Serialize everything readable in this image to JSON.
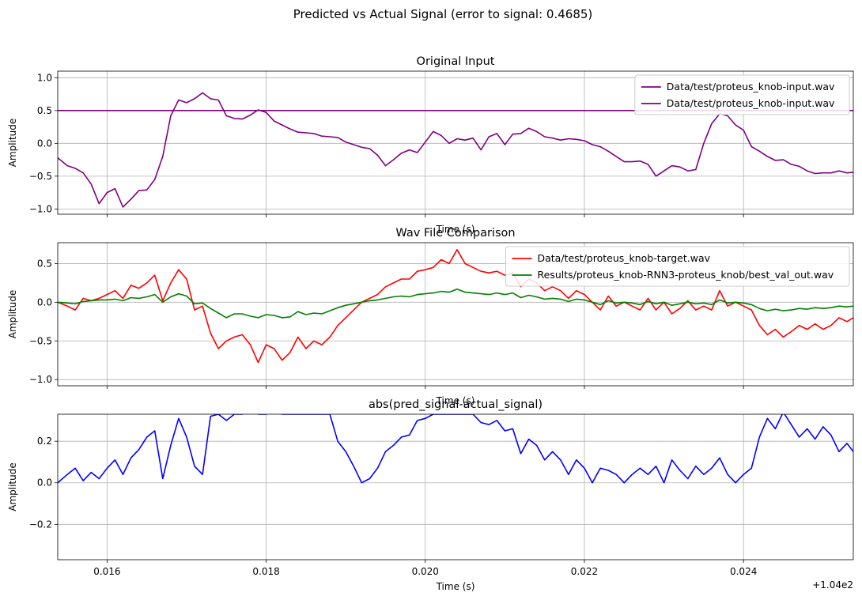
{
  "suptitle": "Predicted vs Actual Signal (error to signal: 0.4685)",
  "x_offset_label": "+1.04e2",
  "chart_data": [
    {
      "type": "line",
      "title": "Original Input",
      "xlabel": "Time (s)",
      "ylabel": "Amplitude",
      "xlim": [
        104.01538,
        104.02538
      ],
      "ylim": [
        -1.08,
        1.1
      ],
      "xticks": [
        104.016,
        104.018,
        104.02,
        104.022,
        104.024
      ],
      "xtick_labels": [
        "0.016",
        "0.018",
        "0.020",
        "0.022",
        "0.024"
      ],
      "show_xtick_labels": false,
      "yticks": [
        -1.0,
        -0.5,
        0.0,
        0.5,
        1.0
      ],
      "ytick_labels": [
        "−1.0",
        "−0.5",
        "0.0",
        "0.5",
        "1.0"
      ],
      "grid": true,
      "legend_loc": "upper right",
      "series": [
        {
          "name": "Data/test/proteus_knob-input.wav",
          "color": "#800080",
          "x": [
            104.01538,
            104.02538
          ],
          "y": [
            0.5,
            0.5
          ]
        },
        {
          "name": "Data/test/proteus_knob-input.wav",
          "color": "#800080",
          "x": [
            104.01538,
            104.0155,
            104.0156,
            104.0157,
            104.0158,
            104.0159,
            104.016,
            104.0161,
            104.0162,
            104.0163,
            104.0164,
            104.0165,
            104.0166,
            104.0167,
            104.0168,
            104.0169,
            104.017,
            104.0171,
            104.0172,
            104.0173,
            104.0174,
            104.0175,
            104.0176,
            104.0177,
            104.0178,
            104.0179,
            104.018,
            104.0181,
            104.0182,
            104.0183,
            104.0184,
            104.0185,
            104.0186,
            104.0187,
            104.0188,
            104.0189,
            104.019,
            104.0191,
            104.0192,
            104.0193,
            104.0194,
            104.0195,
            104.0196,
            104.0197,
            104.0198,
            104.0199,
            104.02,
            104.0201,
            104.0202,
            104.0203,
            104.0204,
            104.0205,
            104.0206,
            104.0207,
            104.0208,
            104.0209,
            104.021,
            104.0211,
            104.0212,
            104.0213,
            104.0214,
            104.0215,
            104.0216,
            104.0217,
            104.0218,
            104.0219,
            104.022,
            104.0221,
            104.0222,
            104.0223,
            104.0224,
            104.0225,
            104.0226,
            104.0227,
            104.0228,
            104.0229,
            104.023,
            104.0231,
            104.0232,
            104.0233,
            104.0234,
            104.0235,
            104.0236,
            104.0237,
            104.0238,
            104.0239,
            104.024,
            104.0241,
            104.0242,
            104.0243,
            104.0244,
            104.0245,
            104.0246,
            104.0247,
            104.0248,
            104.0249,
            104.025,
            104.0251,
            104.0252,
            104.0253,
            104.02538
          ],
          "y": [
            -0.22,
            -0.34,
            -0.38,
            -0.45,
            -0.62,
            -0.92,
            -0.75,
            -0.69,
            -0.97,
            -0.85,
            -0.72,
            -0.71,
            -0.55,
            -0.2,
            0.42,
            0.66,
            0.62,
            0.68,
            0.77,
            0.68,
            0.66,
            0.42,
            0.38,
            0.37,
            0.43,
            0.51,
            0.47,
            0.34,
            0.28,
            0.22,
            0.17,
            0.16,
            0.15,
            0.11,
            0.1,
            0.09,
            0.02,
            -0.02,
            -0.06,
            -0.08,
            -0.18,
            -0.34,
            -0.25,
            -0.15,
            -0.1,
            -0.14,
            0.02,
            0.18,
            0.12,
            0.0,
            0.07,
            0.05,
            0.08,
            -0.1,
            0.1,
            0.15,
            -0.02,
            0.14,
            0.15,
            0.23,
            0.18,
            0.1,
            0.08,
            0.05,
            0.07,
            0.06,
            0.04,
            -0.02,
            -0.05,
            -0.12,
            -0.2,
            -0.28,
            -0.28,
            -0.27,
            -0.32,
            -0.5,
            -0.42,
            -0.34,
            -0.36,
            -0.42,
            -0.4,
            0.0,
            0.3,
            0.45,
            0.42,
            0.28,
            0.2,
            -0.05,
            -0.12,
            -0.2,
            -0.26,
            -0.25,
            -0.32,
            -0.35,
            -0.42,
            -0.46,
            -0.45,
            -0.45,
            -0.42,
            -0.45,
            -0.44
          ]
        }
      ]
    },
    {
      "type": "line",
      "title": "Wav File Comparison",
      "xlabel": "Time (s)",
      "ylabel": "Amplitude",
      "xlim": [
        104.01538,
        104.02538
      ],
      "ylim": [
        -1.08,
        0.77
      ],
      "xticks": [
        104.016,
        104.018,
        104.02,
        104.022,
        104.024
      ],
      "xtick_labels": [
        "0.016",
        "0.018",
        "0.020",
        "0.022",
        "0.024"
      ],
      "show_xtick_labels": false,
      "yticks": [
        -1.0,
        -0.5,
        0.0,
        0.5
      ],
      "ytick_labels": [
        "−1.0",
        "−0.5",
        "0.0",
        "0.5"
      ],
      "grid": true,
      "legend_loc": "upper right",
      "series": [
        {
          "name": "Data/test/proteus_knob-target.wav",
          "color": "#ff0000",
          "x": [
            104.01538,
            104.0155,
            104.0156,
            104.0157,
            104.0158,
            104.0159,
            104.016,
            104.0161,
            104.0162,
            104.0163,
            104.0164,
            104.0165,
            104.0166,
            104.0167,
            104.0168,
            104.0169,
            104.017,
            104.0171,
            104.0172,
            104.0173,
            104.0174,
            104.0175,
            104.0176,
            104.0177,
            104.0178,
            104.0179,
            104.018,
            104.0181,
            104.0182,
            104.0183,
            104.0184,
            104.0185,
            104.0186,
            104.0187,
            104.0188,
            104.0189,
            104.019,
            104.0191,
            104.0192,
            104.0193,
            104.0194,
            104.0195,
            104.0196,
            104.0197,
            104.0198,
            104.0199,
            104.02,
            104.0201,
            104.0202,
            104.0203,
            104.0204,
            104.0205,
            104.0206,
            104.0207,
            104.0208,
            104.0209,
            104.021,
            104.0211,
            104.0212,
            104.0213,
            104.0214,
            104.0215,
            104.0216,
            104.0217,
            104.0218,
            104.0219,
            104.022,
            104.0221,
            104.0222,
            104.0223,
            104.0224,
            104.0225,
            104.0226,
            104.0227,
            104.0228,
            104.0229,
            104.023,
            104.0231,
            104.0232,
            104.0233,
            104.0234,
            104.0235,
            104.0236,
            104.0237,
            104.0238,
            104.0239,
            104.024,
            104.0241,
            104.0242,
            104.0243,
            104.0244,
            104.0245,
            104.0246,
            104.0247,
            104.0248,
            104.0249,
            104.025,
            104.0251,
            104.0252,
            104.0253,
            104.02538
          ],
          "y": [
            0.0,
            -0.05,
            -0.1,
            0.05,
            0.02,
            0.05,
            0.1,
            0.15,
            0.05,
            0.22,
            0.18,
            0.25,
            0.35,
            0.02,
            0.25,
            0.42,
            0.3,
            -0.1,
            -0.05,
            -0.4,
            -0.6,
            -0.5,
            -0.45,
            -0.42,
            -0.55,
            -0.78,
            -0.55,
            -0.6,
            -0.75,
            -0.65,
            -0.45,
            -0.6,
            -0.5,
            -0.55,
            -0.45,
            -0.3,
            -0.2,
            -0.1,
            0.0,
            0.05,
            0.1,
            0.2,
            0.25,
            0.3,
            0.3,
            0.4,
            0.42,
            0.45,
            0.55,
            0.5,
            0.68,
            0.5,
            0.45,
            0.4,
            0.38,
            0.4,
            0.35,
            0.38,
            0.2,
            0.3,
            0.25,
            0.15,
            0.2,
            0.15,
            0.05,
            0.15,
            0.1,
            0.0,
            -0.1,
            0.08,
            -0.05,
            0.0,
            -0.05,
            -0.1,
            0.05,
            -0.1,
            0.0,
            -0.15,
            -0.08,
            0.02,
            -0.1,
            -0.05,
            -0.1,
            0.15,
            -0.05,
            0.0,
            -0.05,
            -0.1,
            -0.3,
            -0.42,
            -0.35,
            -0.45,
            -0.38,
            -0.3,
            -0.35,
            -0.28,
            -0.35,
            -0.3,
            -0.2,
            -0.25,
            -0.2
          ]
        },
        {
          "name": "Results/proteus_knob-RNN3-proteus_knob/best_val_out.wav",
          "color": "#008000",
          "x": [
            104.01538,
            104.0155,
            104.0156,
            104.0157,
            104.0158,
            104.0159,
            104.016,
            104.0161,
            104.0162,
            104.0163,
            104.0164,
            104.0165,
            104.0166,
            104.0167,
            104.0168,
            104.0169,
            104.017,
            104.0171,
            104.0172,
            104.0173,
            104.0174,
            104.0175,
            104.0176,
            104.0177,
            104.0178,
            104.0179,
            104.018,
            104.0181,
            104.0182,
            104.0183,
            104.0184,
            104.0185,
            104.0186,
            104.0187,
            104.0188,
            104.0189,
            104.019,
            104.0191,
            104.0192,
            104.0193,
            104.0194,
            104.0195,
            104.0196,
            104.0197,
            104.0198,
            104.0199,
            104.02,
            104.0201,
            104.0202,
            104.0203,
            104.0204,
            104.0205,
            104.0206,
            104.0207,
            104.0208,
            104.0209,
            104.021,
            104.0211,
            104.0212,
            104.0213,
            104.0214,
            104.0215,
            104.0216,
            104.0217,
            104.0218,
            104.0219,
            104.022,
            104.0221,
            104.0222,
            104.0223,
            104.0224,
            104.0225,
            104.0226,
            104.0227,
            104.0228,
            104.0229,
            104.023,
            104.0231,
            104.0232,
            104.0233,
            104.0234,
            104.0235,
            104.0236,
            104.0237,
            104.0238,
            104.0239,
            104.024,
            104.0241,
            104.0242,
            104.0243,
            104.0244,
            104.0245,
            104.0246,
            104.0247,
            104.0248,
            104.0249,
            104.025,
            104.0251,
            104.0252,
            104.0253,
            104.02538
          ],
          "y": [
            0.0,
            -0.01,
            -0.02,
            0.01,
            0.02,
            0.03,
            0.03,
            0.04,
            0.02,
            0.06,
            0.05,
            0.07,
            0.1,
            0.0,
            0.07,
            0.11,
            0.08,
            -0.02,
            -0.01,
            -0.08,
            -0.14,
            -0.2,
            -0.15,
            -0.15,
            -0.18,
            -0.2,
            -0.16,
            -0.17,
            -0.2,
            -0.19,
            -0.12,
            -0.16,
            -0.14,
            -0.15,
            -0.11,
            -0.07,
            -0.04,
            -0.02,
            0.0,
            0.02,
            0.03,
            0.05,
            0.07,
            0.08,
            0.07,
            0.1,
            0.11,
            0.12,
            0.14,
            0.13,
            0.17,
            0.13,
            0.12,
            0.11,
            0.1,
            0.12,
            0.1,
            0.12,
            0.06,
            0.09,
            0.07,
            0.04,
            0.05,
            0.04,
            0.01,
            0.04,
            0.03,
            0.0,
            -0.03,
            0.02,
            -0.01,
            0.0,
            -0.01,
            -0.03,
            0.01,
            -0.02,
            0.0,
            -0.04,
            -0.02,
            0.0,
            -0.02,
            -0.01,
            -0.03,
            0.03,
            -0.01,
            0.0,
            -0.01,
            -0.03,
            -0.08,
            -0.11,
            -0.09,
            -0.11,
            -0.1,
            -0.08,
            -0.09,
            -0.07,
            -0.08,
            -0.07,
            -0.05,
            -0.06,
            -0.05
          ]
        }
      ]
    },
    {
      "type": "line",
      "title": "abs(pred_signal-actual_signal)",
      "xlabel": "Time (s)",
      "ylabel": "Amplitude",
      "xlim": [
        104.01538,
        104.02538
      ],
      "ylim": [
        -0.37,
        0.33
      ],
      "xticks": [
        104.016,
        104.018,
        104.02,
        104.022,
        104.024
      ],
      "xtick_labels": [
        "0.016",
        "0.018",
        "0.020",
        "0.022",
        "0.024"
      ],
      "show_xtick_labels": true,
      "yticks": [
        -0.2,
        0.0,
        0.2
      ],
      "ytick_labels": [
        "−0.2",
        "0.0",
        "0.2"
      ],
      "grid": true,
      "legend_loc": "",
      "series": [
        {
          "name": "",
          "color": "#0000ff",
          "x": [
            104.01538,
            104.0155,
            104.0156,
            104.0157,
            104.0158,
            104.0159,
            104.016,
            104.0161,
            104.0162,
            104.0163,
            104.0164,
            104.0165,
            104.0166,
            104.0167,
            104.0168,
            104.0169,
            104.017,
            104.0171,
            104.0172,
            104.0173,
            104.0174,
            104.0175,
            104.0176,
            104.0177,
            104.0178,
            104.0179,
            104.018,
            104.0181,
            104.0182,
            104.0183,
            104.0184,
            104.0185,
            104.0186,
            104.0187,
            104.0188,
            104.0189,
            104.019,
            104.0191,
            104.0192,
            104.0193,
            104.0194,
            104.0195,
            104.0196,
            104.0197,
            104.0198,
            104.0199,
            104.02,
            104.0201,
            104.0202,
            104.0203,
            104.0204,
            104.0205,
            104.0206,
            104.0207,
            104.0208,
            104.0209,
            104.021,
            104.0211,
            104.0212,
            104.0213,
            104.0214,
            104.0215,
            104.0216,
            104.0217,
            104.0218,
            104.0219,
            104.022,
            104.0221,
            104.0222,
            104.0223,
            104.0224,
            104.0225,
            104.0226,
            104.0227,
            104.0228,
            104.0229,
            104.023,
            104.0231,
            104.0232,
            104.0233,
            104.0234,
            104.0235,
            104.0236,
            104.0237,
            104.0238,
            104.0239,
            104.024,
            104.0241,
            104.0242,
            104.0243,
            104.0244,
            104.0245,
            104.0246,
            104.0247,
            104.0248,
            104.0249,
            104.025,
            104.0251,
            104.0252,
            104.0253,
            104.02538
          ],
          "y": [
            0.0,
            0.04,
            0.07,
            0.01,
            0.05,
            0.02,
            0.07,
            0.11,
            0.04,
            0.12,
            0.16,
            0.22,
            0.25,
            0.02,
            0.18,
            0.31,
            0.22,
            0.08,
            0.04,
            0.32,
            0.33,
            0.3,
            0.33,
            0.33,
            0.37,
            0.33,
            0.33,
            0.35,
            0.33,
            0.33,
            0.33,
            0.33,
            0.33,
            0.33,
            0.33,
            0.2,
            0.15,
            0.08,
            0.0,
            0.02,
            0.07,
            0.15,
            0.18,
            0.22,
            0.23,
            0.3,
            0.31,
            0.33,
            0.33,
            0.33,
            0.33,
            0.33,
            0.33,
            0.29,
            0.28,
            0.3,
            0.25,
            0.26,
            0.14,
            0.21,
            0.18,
            0.11,
            0.15,
            0.11,
            0.04,
            0.11,
            0.07,
            0.0,
            0.07,
            0.06,
            0.04,
            0.0,
            0.04,
            0.07,
            0.04,
            0.08,
            0.0,
            0.11,
            0.06,
            0.02,
            0.08,
            0.04,
            0.07,
            0.12,
            0.04,
            0.0,
            0.04,
            0.07,
            0.22,
            0.31,
            0.26,
            0.34,
            0.28,
            0.22,
            0.26,
            0.21,
            0.27,
            0.23,
            0.15,
            0.19,
            0.15
          ]
        }
      ]
    }
  ]
}
